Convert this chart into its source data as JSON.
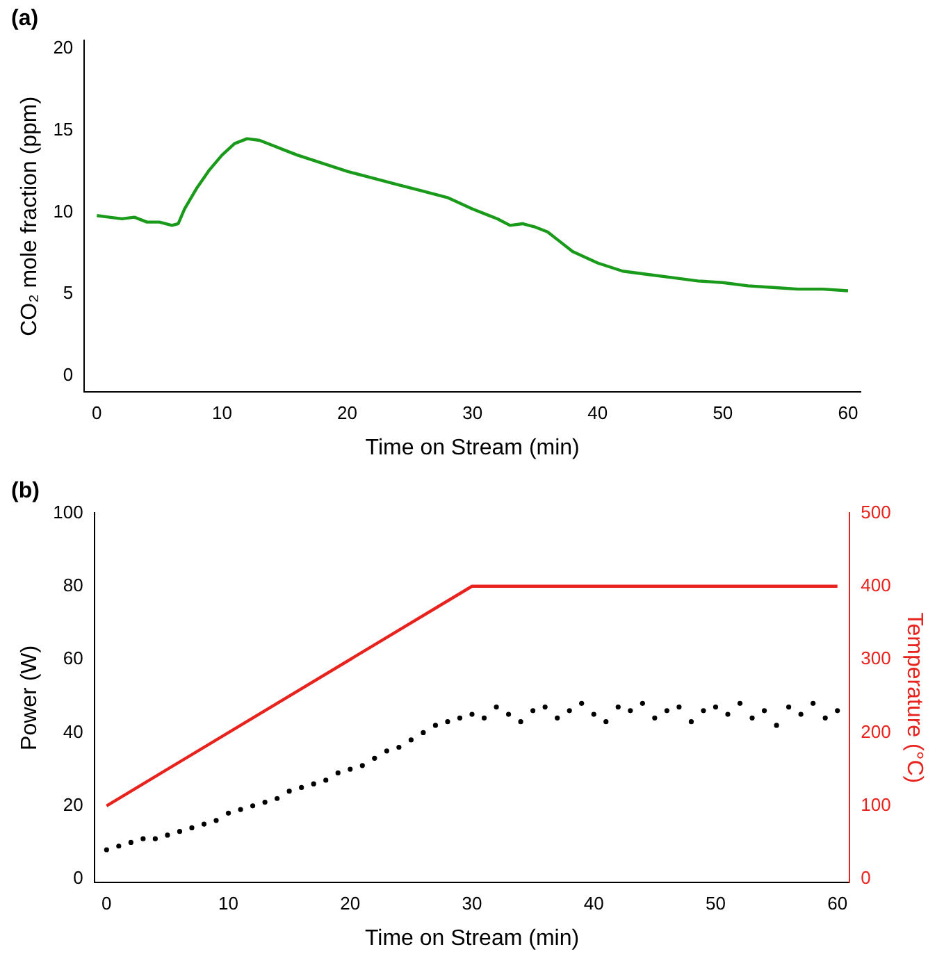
{
  "chart_data": [
    {
      "type": "line",
      "title": "(a)",
      "xlabel": "Time on Stream (min)",
      "ylabel": "CO₂ mole fraction (ppm)",
      "xlim": [
        -1,
        61
      ],
      "xticks": [
        0,
        10,
        20,
        30,
        40,
        50,
        60
      ],
      "ylim": [
        -1,
        20.5
      ],
      "yticks": [
        0,
        5,
        10,
        15,
        20
      ],
      "grid": false,
      "legend": false,
      "marker": "none",
      "series": [
        {
          "color": "#1a9a1a",
          "x": [
            0,
            1,
            2,
            3,
            4,
            5,
            6,
            6.5,
            7,
            8,
            9,
            10,
            11,
            12,
            13,
            14,
            15,
            16,
            18,
            20,
            22,
            24,
            26,
            28,
            30,
            31,
            32,
            33,
            34,
            35,
            36,
            37,
            38,
            40,
            42,
            44,
            46,
            48,
            50,
            52,
            54,
            56,
            58,
            60
          ],
          "values": [
            9.8,
            9.7,
            9.6,
            9.7,
            9.4,
            9.4,
            9.2,
            9.3,
            10.2,
            11.5,
            12.6,
            13.5,
            14.2,
            14.5,
            14.4,
            14.1,
            13.8,
            13.5,
            13.0,
            12.5,
            12.1,
            11.7,
            11.3,
            10.9,
            10.2,
            9.9,
            9.6,
            9.2,
            9.3,
            9.1,
            8.8,
            8.2,
            7.6,
            6.9,
            6.4,
            6.2,
            6.0,
            5.8,
            5.7,
            5.5,
            5.4,
            5.3,
            5.3,
            5.2
          ]
        }
      ]
    },
    {
      "type": "scatter",
      "title": "(b)",
      "xlabel": "Time on Stream (min)",
      "ylabel": "Power (W)",
      "y2label": "Temperature (°C)",
      "xlim": [
        -1,
        61
      ],
      "xticks": [
        0,
        10,
        20,
        30,
        40,
        50,
        60
      ],
      "ylim": [
        -1,
        100
      ],
      "yticks": [
        0,
        20,
        40,
        60,
        80,
        100
      ],
      "y2lim": [
        -5,
        500
      ],
      "y2ticks": [
        0,
        100,
        200,
        300,
        400,
        500
      ],
      "grid": false,
      "legend": false,
      "series": [
        {
          "type": "scatter",
          "marker": "circle",
          "color": "#000000",
          "x": [
            0,
            1,
            2,
            3,
            4,
            5,
            6,
            7,
            8,
            9,
            10,
            11,
            12,
            13,
            14,
            15,
            16,
            17,
            18,
            19,
            20,
            21,
            22,
            23,
            24,
            25,
            26,
            27,
            28,
            29,
            30,
            31,
            32,
            33,
            34,
            35,
            36,
            37,
            38,
            39,
            40,
            41,
            42,
            43,
            44,
            45,
            46,
            47,
            48,
            49,
            50,
            51,
            52,
            53,
            54,
            55,
            56,
            57,
            58,
            59,
            60
          ],
          "values": [
            8,
            9,
            10,
            11,
            11,
            12,
            13,
            14,
            15,
            16,
            18,
            19,
            20,
            21,
            22,
            24,
            25,
            26,
            27,
            29,
            30,
            31,
            33,
            35,
            36,
            38,
            40,
            42,
            43,
            44,
            45,
            44,
            47,
            45,
            43,
            46,
            47,
            44,
            46,
            48,
            45,
            43,
            47,
            46,
            48,
            44,
            46,
            47,
            43,
            46,
            47,
            45,
            48,
            44,
            46,
            42,
            47,
            45,
            48,
            44,
            46
          ]
        },
        {
          "type": "line",
          "marker": "none",
          "axis": "y2",
          "color": "#e8231e",
          "x": [
            0,
            30,
            60
          ],
          "values": [
            100,
            400,
            400
          ]
        }
      ]
    }
  ]
}
